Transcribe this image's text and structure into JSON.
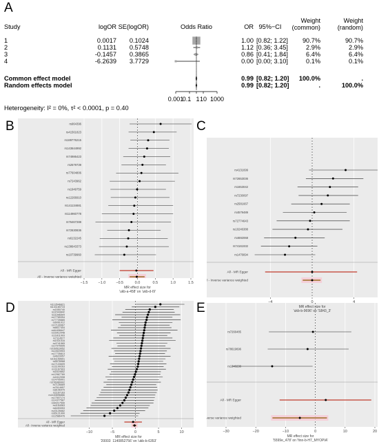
{
  "panel_letters": {
    "a": "A",
    "b": "B",
    "c": "C",
    "d": "D",
    "e": "E"
  },
  "meta": {
    "headers": {
      "study": "Study",
      "logor": "logOR",
      "selogor": "SE(logOR)",
      "odds_ratio": "Odds Ratio",
      "or": "OR",
      "ci": "95%−CI",
      "weight_common_1": "Weight",
      "weight_common_2": "(common)",
      "weight_random_1": "Weight",
      "weight_random_2": "(random)"
    },
    "rows": [
      {
        "study": "1",
        "logor": "0.0017",
        "se": "0.1024",
        "or": "1.00",
        "ci": "[0.82; 1.22]",
        "wc": "90.7%",
        "wr": "90.7%"
      },
      {
        "study": "2",
        "logor": "0.1131",
        "se": "0.5748",
        "or": "1.12",
        "ci": "[0.36; 3.45]",
        "wc": "2.9%",
        "wr": "2.9%"
      },
      {
        "study": "3",
        "logor": "-0.1457",
        "se": "0.3865",
        "or": "0.86",
        "ci": "[0.41; 1.84]",
        "wc": "6.4%",
        "wr": "6.4%"
      },
      {
        "study": "4",
        "logor": "-6.2639",
        "se": "3.7729",
        "or": "0.00",
        "ci": "[0.00; 3.10]",
        "wc": "0.1%",
        "wr": "0.1%"
      }
    ],
    "common": {
      "label": "Common effect model",
      "or": "0.99",
      "ci": "[0.82; 1.20]",
      "wc": "100.0%",
      "wr": "."
    },
    "random": {
      "label": "Random effects model",
      "or": "0.99",
      "ci": "[0.82; 1.20]",
      "wc": ".",
      "wr": "100.0%"
    },
    "axis_ticks": [
      "0.001",
      "0.1",
      "1",
      "10",
      "1000"
    ],
    "heterogeneity_prefix": "Heterogeneity: ",
    "heterogeneity": "I² = 0%, τ² < 0.0001, p = 0.40"
  },
  "chart_data": [
    {
      "panel": "A",
      "type": "scatter",
      "subtype": "forest",
      "x_scale": "log",
      "xlim": [
        0.001,
        1000
      ],
      "studies": [
        "1",
        "2",
        "3",
        "4"
      ],
      "or": [
        1.0,
        1.12,
        0.86,
        0.0
      ],
      "ci_low": [
        0.82,
        0.36,
        0.41,
        0.0
      ],
      "ci_high": [
        1.22,
        3.45,
        1.84,
        3.1
      ],
      "pooled": {
        "common": [
          0.99,
          0.82,
          1.2
        ],
        "random": [
          0.99,
          0.82,
          1.2
        ]
      }
    },
    {
      "panel": "B",
      "type": "scatter",
      "subtype": "forest",
      "xlabel": "MR effect size for\n'ukb-a-458' on 'ukb-d-I9'",
      "xlim": [
        -1.5,
        1.5
      ],
      "xticks": [
        -1.5,
        -1.0,
        -0.5,
        0.0,
        0.5,
        1.0,
        1.5
      ],
      "snps": [
        "rs964396",
        "rs41561823",
        "rs189776215",
        "rs143644992",
        "rs74986423",
        "rs2579739",
        "rs77604806",
        "rs7243962",
        "rs1949759",
        "rs12266910",
        "rs141134681",
        "rs114960778",
        "rs76467288",
        "rs72630836",
        "rs6132245",
        "rs138643373",
        "rs10739960"
      ],
      "estimate": [
        0.65,
        0.46,
        0.3,
        0.27,
        0.19,
        0.14,
        0.11,
        0.06,
        -0.01,
        -0.06,
        -0.09,
        -0.11,
        -0.17,
        -0.24,
        -0.26,
        -0.3,
        -0.37
      ],
      "ci_low": [
        -0.22,
        -0.25,
        -0.2,
        -0.25,
        -0.4,
        -0.45,
        -0.6,
        -0.78,
        -0.76,
        -0.75,
        -0.82,
        -1.0,
        -1.18,
        -0.85,
        -1.06,
        -1.08,
        -1.2
      ],
      "ci_high": [
        1.52,
        1.1,
        0.9,
        0.88,
        0.92,
        0.8,
        1.15,
        1.05,
        0.8,
        0.9,
        1.0,
        1.0,
        0.94,
        0.65,
        0.85,
        0.88,
        0.52
      ],
      "summaries": [
        {
          "label": "All - MR Egger",
          "estimate": -0.03,
          "ci_low": -0.5,
          "ci_high": 0.45,
          "color": "#c0392b"
        },
        {
          "label": "All - Inverse variance weighted",
          "estimate": -0.02,
          "ci_low": -0.22,
          "ci_high": 0.2,
          "color": "#8b5a00"
        }
      ]
    },
    {
      "panel": "C",
      "type": "scatter",
      "subtype": "forest",
      "xlabel": "MR effect size for\n'ukb-b-9696' on 'S843_3'",
      "xlim": [
        -6,
        6
      ],
      "xticks": [
        -4,
        0,
        4
      ],
      "snps": [
        "rs4131699",
        "rs72653036",
        "rs1653042",
        "rs7230097",
        "rs2581667",
        "rs4579489",
        "rs72774643",
        "rs10246388",
        "rs4692068",
        "rs74161932",
        "rs1476694"
      ],
      "estimate": [
        3.2,
        2.0,
        1.7,
        1.5,
        0.9,
        0.2,
        -0.2,
        -0.4,
        -1.6,
        -2.2,
        -2.6
      ],
      "ci_low": [
        -0.3,
        -0.6,
        -1.4,
        -1.3,
        -2.0,
        -2.8,
        -3.4,
        -3.8,
        -4.6,
        -4.9,
        -5.5
      ],
      "ci_high": [
        6.4,
        4.9,
        4.4,
        4.4,
        3.6,
        3.3,
        3.6,
        2.9,
        1.2,
        0.5,
        0.3
      ],
      "summaries": [
        {
          "label": "All - MR Egger",
          "estimate": 0.0,
          "ci_low": -4.5,
          "ci_high": 4.3,
          "color": "#c0392b"
        },
        {
          "label": "All - Inverse variance weighted",
          "estimate": 0.0,
          "ci_low": -0.9,
          "ci_high": 0.8,
          "color": "#8b5a00"
        }
      ]
    },
    {
      "panel": "D",
      "type": "scatter",
      "subtype": "forest",
      "xlabel": "MR effect size for\n'20003_1140852756' on 'ukb-b-6353'",
      "xlim": [
        -15,
        12
      ],
      "xticks": [
        -10,
        -5,
        0,
        5,
        10
      ],
      "snps": [
        "rs113546821",
        "rs141180715",
        "rs1550740",
        "rs11543842",
        "rs11996904",
        "rs17765394",
        "rs77739885",
        "rs6061012",
        "rs17130967",
        "rs6617404",
        "rs64406647",
        "rs16912048",
        "rs11811993",
        "rs7114577",
        "rs1921016",
        "rs4741565",
        "rs17075595",
        "rs169519052",
        "rs14523903",
        "rs17735813",
        "rs4623057",
        "rs161159601",
        "rs5578968",
        "rs17133609",
        "rs11199263",
        "rs11167903",
        "rs1619852",
        "rs12967789",
        "rs1612008",
        "rs14705901",
        "rs156989902",
        "rs7126669",
        "rs7614657",
        "rs8106470",
        "rs1167163",
        "rs1440896866",
        "rs17507174",
        "rs14377587",
        "rs64217590",
        "rs4154063",
        "rs6453053",
        "rs43126682",
        "rs65121990",
        "rs12586476"
      ],
      "estimate": [
        5.4,
        4.3,
        3.1,
        2.9,
        2.7,
        2.5,
        2.4,
        2.2,
        2.1,
        2.0,
        1.9,
        1.8,
        1.7,
        1.6,
        1.5,
        1.4,
        1.3,
        1.2,
        1.1,
        1.0,
        0.9,
        0.8,
        0.7,
        0.6,
        0.5,
        0.3,
        0.1,
        -0.1,
        -0.3,
        -0.5,
        -0.7,
        -0.9,
        -1.1,
        -1.3,
        -1.5,
        -1.8,
        -2.1,
        -2.4,
        -2.8,
        -3.3,
        -3.9,
        -4.6,
        -5.5,
        -6.7
      ],
      "ci_low": [
        0.1,
        -0.8,
        -2.2,
        -2.8,
        -4.4,
        -3.0,
        -5.0,
        -3.6,
        -3.2,
        -3.8,
        -5.3,
        -4.0,
        -3.5,
        -4.8,
        -5.7,
        -4.1,
        -3.9,
        -5.2,
        -4.6,
        -4.4,
        -5.8,
        -4.9,
        -4.6,
        -5.5,
        -5.1,
        -6.0,
        -5.3,
        -5.6,
        -6.5,
        -6.1,
        -6.9,
        -6.3,
        -6.9,
        -7.4,
        -7.6,
        -7.9,
        -8.4,
        -8.8,
        -9.5,
        -9.7,
        -10.6,
        -11.3,
        -11.9,
        -14.0
      ],
      "ci_high": [
        10.6,
        9.5,
        8.3,
        8.5,
        9.7,
        8.0,
        9.8,
        8.0,
        7.4,
        7.8,
        9.1,
        7.6,
        6.9,
        8.0,
        8.7,
        6.9,
        6.5,
        7.6,
        6.8,
        6.4,
        7.6,
        6.5,
        6.0,
        6.7,
        6.1,
        6.6,
        5.5,
        5.4,
        5.9,
        5.1,
        5.5,
        4.5,
        4.7,
        4.8,
        4.6,
        4.3,
        4.2,
        4.0,
        3.9,
        3.1,
        2.8,
        2.1,
        0.9,
        0.6
      ],
      "summaries": [
        {
          "label": "All - MR Egger",
          "estimate": -0.5,
          "ci_low": -2.4,
          "ci_high": 1.4,
          "color": "#c0392b"
        },
        {
          "label": "All - Inverse variance weighted",
          "estimate": -0.2,
          "ci_low": -0.6,
          "ci_high": 0.2,
          "color": "#8b5a00"
        }
      ]
    },
    {
      "panel": "E",
      "type": "scatter",
      "subtype": "forest",
      "xlabel": "MR effect size for\n'5599e_478' on 'finn-b-H7_MYOPIA'",
      "xlim": [
        -30,
        20
      ],
      "xticks": [
        -30,
        -20,
        -10,
        0,
        10,
        20
      ],
      "snps": [
        "rs7266485",
        "rs78619696",
        "rs1340238"
      ],
      "estimate": [
        -0.8,
        -2.6,
        -14.5
      ],
      "ci_low": [
        -15.6,
        -16.0,
        -28.1
      ],
      "ci_high": [
        12.1,
        11.2,
        -0.9
      ],
      "summaries": [
        {
          "label": "All - MR Egger",
          "estimate": 3.5,
          "ci_low": -12.0,
          "ci_high": 18.8,
          "color": "#c0392b"
        },
        {
          "label": "All - Inverse variance weighted",
          "estimate": -5.2,
          "ci_low": -14.4,
          "ci_high": 3.9,
          "color": "#8b5a00"
        }
      ]
    }
  ]
}
